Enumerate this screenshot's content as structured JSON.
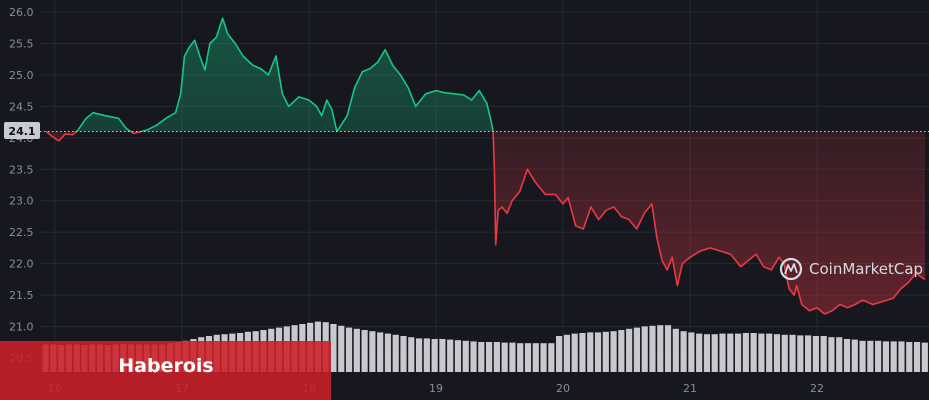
{
  "chart_data": {
    "type": "line",
    "title": "",
    "xlabel": "",
    "ylabel": "",
    "ylim": [
      20.3,
      26.1
    ],
    "xlim": [
      15.93,
      22.85
    ],
    "yticks": [
      "26.0",
      "25.5",
      "25.0",
      "24.5",
      "24.0",
      "23.5",
      "23.0",
      "22.5",
      "22.0",
      "21.5",
      "21.0",
      "20.5"
    ],
    "xticks": [
      "16",
      "17",
      "18",
      "19",
      "20",
      "21",
      "22"
    ],
    "baseline": 24.1,
    "baseline_label": "24.1",
    "grid": true,
    "legend": "none",
    "colors": {
      "up": "#16c784",
      "down": "#ea3943",
      "background": "#17181f",
      "volume": "#d8d9de"
    },
    "series": [
      {
        "points": [
          [
            15.93,
            24.1
          ],
          [
            15.98,
            24.02
          ],
          [
            16.03,
            23.95
          ],
          [
            16.08,
            24.06
          ],
          [
            16.14,
            24.05
          ],
          [
            16.18,
            24.12
          ],
          [
            16.24,
            24.3
          ],
          [
            16.3,
            24.4
          ],
          [
            16.4,
            24.35
          ],
          [
            16.5,
            24.31
          ],
          [
            16.56,
            24.15
          ],
          [
            16.62,
            24.07
          ],
          [
            16.72,
            24.12
          ],
          [
            16.8,
            24.2
          ],
          [
            16.88,
            24.32
          ],
          [
            16.95,
            24.4
          ],
          [
            16.99,
            24.7
          ],
          [
            17.02,
            25.3
          ],
          [
            17.06,
            25.45
          ],
          [
            17.1,
            25.55
          ],
          [
            17.14,
            25.3
          ],
          [
            17.18,
            25.08
          ],
          [
            17.22,
            25.5
          ],
          [
            17.27,
            25.6
          ],
          [
            17.32,
            25.9
          ],
          [
            17.36,
            25.65
          ],
          [
            17.42,
            25.5
          ],
          [
            17.48,
            25.3
          ],
          [
            17.56,
            25.15
          ],
          [
            17.62,
            25.1
          ],
          [
            17.68,
            25.0
          ],
          [
            17.74,
            25.3
          ],
          [
            17.79,
            24.7
          ],
          [
            17.84,
            24.5
          ],
          [
            17.92,
            24.65
          ],
          [
            18.0,
            24.6
          ],
          [
            18.06,
            24.5
          ],
          [
            18.1,
            24.35
          ],
          [
            18.14,
            24.6
          ],
          [
            18.18,
            24.45
          ],
          [
            18.22,
            24.1
          ],
          [
            18.3,
            24.35
          ],
          [
            18.36,
            24.8
          ],
          [
            18.42,
            25.05
          ],
          [
            18.48,
            25.1
          ],
          [
            18.54,
            25.2
          ],
          [
            18.6,
            25.4
          ],
          [
            18.66,
            25.15
          ],
          [
            18.72,
            25.0
          ],
          [
            18.78,
            24.8
          ],
          [
            18.84,
            24.5
          ],
          [
            18.92,
            24.7
          ],
          [
            19.0,
            24.75
          ],
          [
            19.06,
            24.72
          ],
          [
            19.14,
            24.7
          ],
          [
            19.22,
            24.68
          ],
          [
            19.28,
            24.6
          ],
          [
            19.34,
            24.75
          ],
          [
            19.4,
            24.55
          ],
          [
            19.43,
            24.3
          ],
          [
            19.45,
            24.1
          ],
          [
            19.46,
            23.5
          ],
          [
            19.47,
            22.3
          ],
          [
            19.49,
            22.85
          ],
          [
            19.52,
            22.9
          ],
          [
            19.56,
            22.8
          ],
          [
            19.6,
            23.0
          ],
          [
            19.66,
            23.15
          ],
          [
            19.72,
            23.5
          ],
          [
            19.78,
            23.3
          ],
          [
            19.86,
            23.1
          ],
          [
            19.94,
            23.1
          ],
          [
            20.0,
            22.95
          ],
          [
            20.04,
            23.05
          ],
          [
            20.1,
            22.6
          ],
          [
            20.16,
            22.55
          ],
          [
            20.22,
            22.9
          ],
          [
            20.28,
            22.7
          ],
          [
            20.34,
            22.85
          ],
          [
            20.4,
            22.9
          ],
          [
            20.46,
            22.75
          ],
          [
            20.52,
            22.7
          ],
          [
            20.58,
            22.55
          ],
          [
            20.64,
            22.8
          ],
          [
            20.7,
            22.95
          ],
          [
            20.74,
            22.4
          ],
          [
            20.78,
            22.05
          ],
          [
            20.82,
            21.9
          ],
          [
            20.86,
            22.1
          ],
          [
            20.9,
            21.65
          ],
          [
            20.94,
            22.0
          ],
          [
            21.0,
            22.1
          ],
          [
            21.08,
            22.2
          ],
          [
            21.16,
            22.25
          ],
          [
            21.24,
            22.2
          ],
          [
            21.32,
            22.15
          ],
          [
            21.4,
            21.95
          ],
          [
            21.46,
            22.05
          ],
          [
            21.52,
            22.15
          ],
          [
            21.58,
            21.95
          ],
          [
            21.64,
            21.9
          ],
          [
            21.7,
            22.1
          ],
          [
            21.74,
            22.0
          ],
          [
            21.78,
            21.6
          ],
          [
            21.82,
            21.5
          ],
          [
            21.84,
            21.65
          ],
          [
            21.88,
            21.35
          ],
          [
            21.94,
            21.25
          ],
          [
            22.0,
            21.3
          ],
          [
            22.06,
            21.2
          ],
          [
            22.12,
            21.25
          ],
          [
            22.18,
            21.35
          ],
          [
            22.24,
            21.3
          ],
          [
            22.3,
            21.35
          ],
          [
            22.36,
            21.42
          ],
          [
            22.44,
            21.35
          ],
          [
            22.52,
            21.4
          ],
          [
            22.6,
            21.45
          ],
          [
            22.66,
            21.6
          ],
          [
            22.72,
            21.7
          ],
          [
            22.78,
            21.85
          ],
          [
            22.81,
            21.8
          ],
          [
            22.85,
            21.75
          ]
        ]
      }
    ],
    "volume": [
      46,
      46,
      45,
      46,
      46,
      45,
      46,
      46,
      45,
      46,
      47,
      46,
      46,
      46,
      46,
      46,
      48,
      50,
      52,
      55,
      58,
      60,
      62,
      63,
      64,
      65,
      67,
      68,
      70,
      72,
      74,
      76,
      78,
      80,
      82,
      84,
      83,
      80,
      77,
      74,
      72,
      70,
      68,
      66,
      64,
      62,
      60,
      58,
      56,
      56,
      55,
      55,
      54,
      53,
      52,
      51,
      50,
      50,
      50,
      49,
      49,
      48,
      48,
      48,
      48,
      48,
      60,
      62,
      64,
      65,
      66,
      66,
      67,
      68,
      70,
      72,
      74,
      76,
      77,
      78,
      78,
      72,
      68,
      66,
      64,
      63,
      63,
      64,
      64,
      64,
      65,
      65,
      64,
      64,
      63,
      62,
      62,
      61,
      61,
      60,
      60,
      58,
      58,
      55,
      54,
      52,
      52,
      52,
      51,
      51,
      51,
      50,
      50,
      49
    ],
    "annotations": {
      "brand": "CoinMarketCap",
      "caption": "Haberois"
    }
  }
}
